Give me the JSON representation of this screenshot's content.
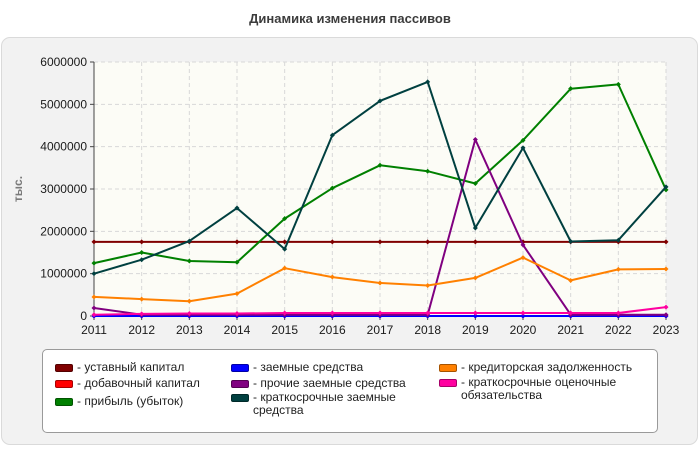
{
  "title": "Динамика изменения пассивов",
  "chart_data": {
    "type": "line",
    "title": "Динамика изменения пассивов",
    "xlabel": "",
    "ylabel": "тыс.",
    "ylim": [
      0,
      6000000
    ],
    "yticks": [
      "0",
      "1000000",
      "2000000",
      "3000000",
      "4000000",
      "5000000",
      "6000000"
    ],
    "x": [
      "2011",
      "2012",
      "2013",
      "2014",
      "2015",
      "2016",
      "2017",
      "2018",
      "2019",
      "2020",
      "2021",
      "2022",
      "2023"
    ],
    "grid": true,
    "legend_position": "bottom",
    "series": [
      {
        "name": "- уставный капитал",
        "color": "#800000",
        "values": [
          1750000,
          1750000,
          1750000,
          1750000,
          1750000,
          1750000,
          1750000,
          1750000,
          1750000,
          1750000,
          1750000,
          1750000,
          1750000
        ]
      },
      {
        "name": "- добавочный капитал",
        "color": "#ff0000",
        "values": [
          0,
          0,
          0,
          0,
          0,
          0,
          0,
          0,
          0,
          0,
          0,
          0,
          0
        ]
      },
      {
        "name": "- прибыль (убыток)",
        "color": "#008000",
        "values": [
          1250000,
          1500000,
          1300000,
          1270000,
          2300000,
          3020000,
          3560000,
          3420000,
          3130000,
          4150000,
          5370000,
          5470000,
          2980000
        ]
      },
      {
        "name": "- заемные средства",
        "color": "#0000ff",
        "values": [
          0,
          0,
          0,
          0,
          0,
          0,
          0,
          0,
          0,
          0,
          0,
          0,
          0
        ]
      },
      {
        "name": "- прочие заемные средства",
        "color": "#800080",
        "values": [
          190000,
          30000,
          30000,
          30000,
          30000,
          30000,
          30000,
          30000,
          4170000,
          1680000,
          30000,
          30000,
          30000
        ]
      },
      {
        "name": "- краткосрочные заемные средства",
        "color": "#004040",
        "values": [
          1000000,
          1330000,
          1770000,
          2550000,
          1580000,
          4270000,
          5080000,
          5530000,
          2080000,
          3970000,
          1760000,
          1790000,
          3050000
        ]
      },
      {
        "name": "- кредиторская задолженность",
        "color": "#ff8000",
        "values": [
          450000,
          400000,
          350000,
          530000,
          1130000,
          920000,
          780000,
          720000,
          900000,
          1380000,
          840000,
          1100000,
          1110000
        ]
      },
      {
        "name": "- краткосрочные оценочные обязательства",
        "color": "#ff00a0",
        "values": [
          30000,
          50000,
          60000,
          60000,
          70000,
          70000,
          70000,
          70000,
          70000,
          70000,
          70000,
          70000,
          210000
        ]
      }
    ]
  },
  "legend": {
    "items": [
      {
        "label": "- уставный капитал",
        "color": "#800000"
      },
      {
        "label": "- добавочный капитал",
        "color": "#ff0000"
      },
      {
        "label": "- прибыль (убыток)",
        "color": "#008000"
      },
      {
        "label": "- заемные средства",
        "color": "#0000ff"
      },
      {
        "label": "- прочие заемные средства",
        "color": "#800080"
      },
      {
        "label": "- краткосрочные заемные средства",
        "color": "#004040"
      },
      {
        "label": "- кредиторская задолженность",
        "color": "#ff8000"
      },
      {
        "label": "- краткосрочные оценочные обязательства",
        "color": "#ff00a0"
      }
    ]
  }
}
